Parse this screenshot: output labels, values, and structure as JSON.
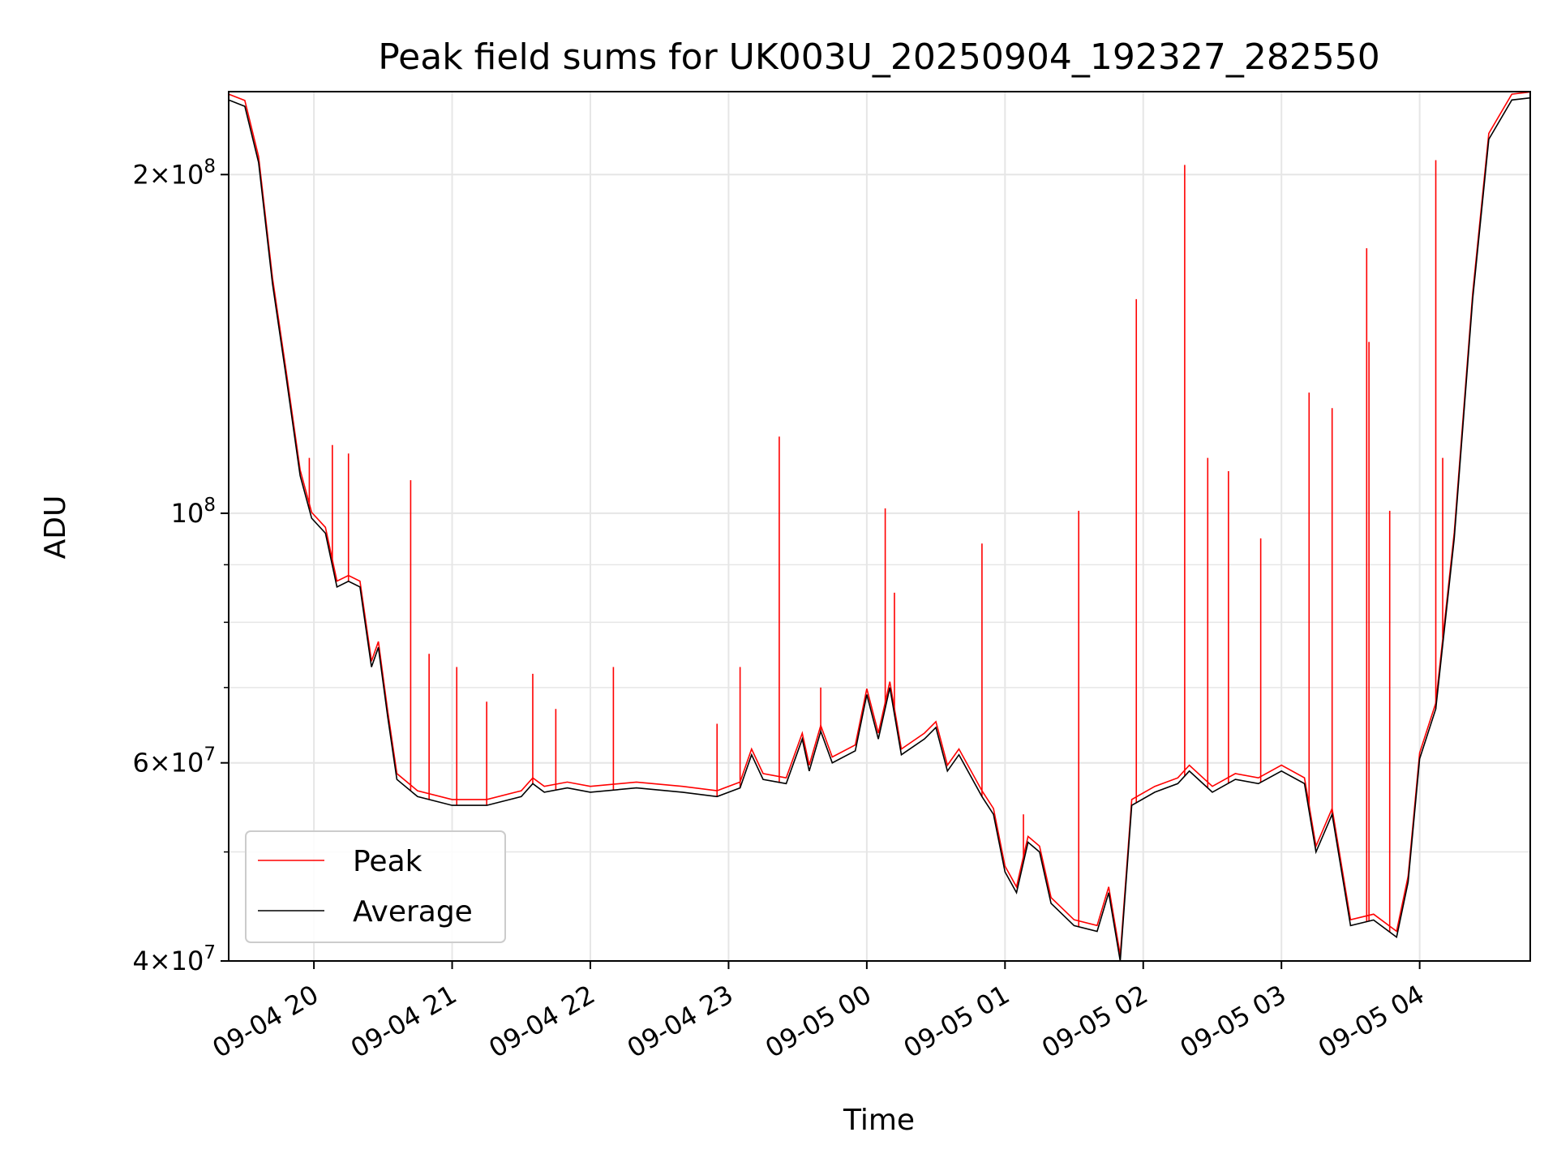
{
  "chart_data": {
    "type": "line",
    "title": "Peak field sums for UK003U_20250904_192327_282550",
    "xlabel": "Time",
    "ylabel": "ADU",
    "yscale": "log",
    "ylim": [
      40000000,
      237000000
    ],
    "xlim": [
      "2025-09-04 19:23",
      "2025-09-05 04:48"
    ],
    "grid": true,
    "legend_location": "lower-left",
    "x_tick_labels": [
      "09-04 20",
      "09-04 21",
      "09-04 22",
      "09-04 23",
      "09-05 00",
      "09-05 01",
      "09-05 02",
      "09-05 03",
      "09-05 04"
    ],
    "y_tick_labels": [
      {
        "value": 40000000,
        "mant": "4",
        "exp": "7"
      },
      {
        "value": 60000000,
        "mant": "6",
        "exp": "7"
      },
      {
        "value": 100000000,
        "mant": "",
        "exp": "8"
      },
      {
        "value": 200000000,
        "mant": "2",
        "exp": "8"
      }
    ],
    "y_minor_gridlines": [
      50000000,
      70000000,
      80000000,
      90000000
    ],
    "series": [
      {
        "name": "Average",
        "color": "#000000",
        "points": [
          [
            "2025-09-04 19:23",
            233000000
          ],
          [
            "2025-09-04 19:30",
            230000000
          ],
          [
            "2025-09-04 19:36",
            205000000
          ],
          [
            "2025-09-04 19:42",
            160000000
          ],
          [
            "2025-09-04 19:48",
            132000000
          ],
          [
            "2025-09-04 19:54",
            108000000
          ],
          [
            "2025-09-04 19:59",
            99000000
          ],
          [
            "2025-09-04 20:05",
            96000000
          ],
          [
            "2025-09-04 20:10",
            86000000
          ],
          [
            "2025-09-04 20:15",
            87000000
          ],
          [
            "2025-09-04 20:20",
            86000000
          ],
          [
            "2025-09-04 20:25",
            73000000
          ],
          [
            "2025-09-04 20:28",
            76000000
          ],
          [
            "2025-09-04 20:32",
            66000000
          ],
          [
            "2025-09-04 20:36",
            58000000
          ],
          [
            "2025-09-04 20:45",
            56000000
          ],
          [
            "2025-09-04 21:00",
            55000000
          ],
          [
            "2025-09-04 21:15",
            55000000
          ],
          [
            "2025-09-04 21:30",
            56000000
          ],
          [
            "2025-09-04 21:35",
            57500000
          ],
          [
            "2025-09-04 21:40",
            56500000
          ],
          [
            "2025-09-04 21:50",
            57000000
          ],
          [
            "2025-09-04 22:00",
            56500000
          ],
          [
            "2025-09-04 22:20",
            57000000
          ],
          [
            "2025-09-04 22:40",
            56500000
          ],
          [
            "2025-09-04 22:55",
            56000000
          ],
          [
            "2025-09-04 23:05",
            57000000
          ],
          [
            "2025-09-04 23:10",
            61000000
          ],
          [
            "2025-09-04 23:15",
            58000000
          ],
          [
            "2025-09-04 23:25",
            57500000
          ],
          [
            "2025-09-04 23:32",
            63000000
          ],
          [
            "2025-09-04 23:35",
            59000000
          ],
          [
            "2025-09-04 23:40",
            64000000
          ],
          [
            "2025-09-04 23:45",
            60000000
          ],
          [
            "2025-09-04 23:55",
            61500000
          ],
          [
            "2025-09-05 00:00",
            69000000
          ],
          [
            "2025-09-05 00:05",
            63000000
          ],
          [
            "2025-09-05 00:10",
            70000000
          ],
          [
            "2025-09-05 00:15",
            61000000
          ],
          [
            "2025-09-05 00:25",
            63000000
          ],
          [
            "2025-09-05 00:30",
            64500000
          ],
          [
            "2025-09-05 00:35",
            59000000
          ],
          [
            "2025-09-05 00:40",
            61000000
          ],
          [
            "2025-09-05 00:50",
            56000000
          ],
          [
            "2025-09-05 00:55",
            54000000
          ],
          [
            "2025-09-05 01:00",
            48000000
          ],
          [
            "2025-09-05 01:05",
            46000000
          ],
          [
            "2025-09-05 01:10",
            51000000
          ],
          [
            "2025-09-05 01:15",
            50000000
          ],
          [
            "2025-09-05 01:20",
            45000000
          ],
          [
            "2025-09-05 01:30",
            43000000
          ],
          [
            "2025-09-05 01:40",
            42500000
          ],
          [
            "2025-09-05 01:45",
            46000000
          ],
          [
            "2025-09-05 01:50",
            40000000
          ],
          [
            "2025-09-05 01:55",
            55000000
          ],
          [
            "2025-09-05 02:05",
            56500000
          ],
          [
            "2025-09-05 02:15",
            57500000
          ],
          [
            "2025-09-05 02:20",
            59000000
          ],
          [
            "2025-09-05 02:30",
            56500000
          ],
          [
            "2025-09-05 02:40",
            58000000
          ],
          [
            "2025-09-05 02:50",
            57500000
          ],
          [
            "2025-09-05 03:00",
            59000000
          ],
          [
            "2025-09-05 03:10",
            57500000
          ],
          [
            "2025-09-05 03:15",
            50000000
          ],
          [
            "2025-09-05 03:22",
            54000000
          ],
          [
            "2025-09-05 03:30",
            43000000
          ],
          [
            "2025-09-05 03:40",
            43500000
          ],
          [
            "2025-09-05 03:50",
            42000000
          ],
          [
            "2025-09-05 03:55",
            47000000
          ],
          [
            "2025-09-05 04:00",
            60500000
          ],
          [
            "2025-09-05 04:07",
            67000000
          ],
          [
            "2025-09-05 04:15",
            95000000
          ],
          [
            "2025-09-05 04:23",
            155000000
          ],
          [
            "2025-09-05 04:30",
            215000000
          ],
          [
            "2025-09-05 04:40",
            233000000
          ],
          [
            "2025-09-05 04:48",
            234000000
          ]
        ]
      },
      {
        "name": "Peak",
        "color": "#ff0000",
        "base_offset": 1.012,
        "spikes": [
          [
            "2025-09-04 19:58",
            112000000
          ],
          [
            "2025-09-04 20:08",
            115000000
          ],
          [
            "2025-09-04 20:15",
            113000000
          ],
          [
            "2025-09-04 20:42",
            107000000
          ],
          [
            "2025-09-04 20:50",
            75000000
          ],
          [
            "2025-09-04 21:02",
            73000000
          ],
          [
            "2025-09-04 21:15",
            68000000
          ],
          [
            "2025-09-04 21:35",
            72000000
          ],
          [
            "2025-09-04 21:45",
            67000000
          ],
          [
            "2025-09-04 22:10",
            73000000
          ],
          [
            "2025-09-04 22:55",
            65000000
          ],
          [
            "2025-09-04 23:05",
            73000000
          ],
          [
            "2025-09-04 23:22",
            117000000
          ],
          [
            "2025-09-04 23:40",
            70000000
          ],
          [
            "2025-09-05 00:08",
            101000000
          ],
          [
            "2025-09-05 00:12",
            85000000
          ],
          [
            "2025-09-05 00:50",
            94000000
          ],
          [
            "2025-09-05 01:08",
            54000000
          ],
          [
            "2025-09-05 01:32",
            100500000
          ],
          [
            "2025-09-05 01:57",
            155000000
          ],
          [
            "2025-09-05 02:18",
            204000000
          ],
          [
            "2025-09-05 02:28",
            112000000
          ],
          [
            "2025-09-05 02:37",
            109000000
          ],
          [
            "2025-09-05 02:51",
            95000000
          ],
          [
            "2025-09-05 03:12",
            128000000
          ],
          [
            "2025-09-05 03:22",
            124000000
          ],
          [
            "2025-09-05 03:37",
            172000000
          ],
          [
            "2025-09-05 03:38",
            142000000
          ],
          [
            "2025-09-05 03:47",
            100500000
          ],
          [
            "2025-09-05 04:07",
            206000000
          ],
          [
            "2025-09-05 04:10",
            112000000
          ]
        ]
      }
    ]
  }
}
